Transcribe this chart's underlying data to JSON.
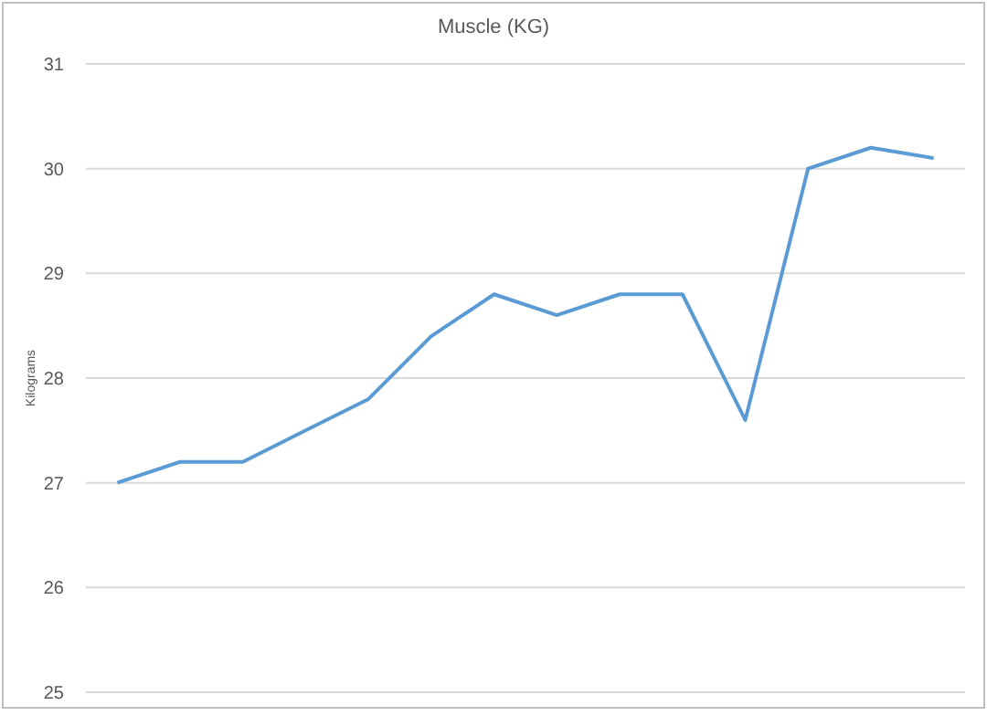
{
  "chart_data": {
    "type": "line",
    "title": "Muscle (KG)",
    "ylabel": "Kilograms",
    "categories": [
      null,
      null,
      null,
      null,
      null,
      null,
      null,
      null,
      null,
      null,
      null,
      null,
      null,
      null
    ],
    "series": [
      {
        "color": "#5b9bd5",
        "values": [
          27.0,
          27.2,
          27.2,
          27.5,
          27.8,
          28.4,
          28.8,
          28.6,
          28.8,
          28.8,
          27.6,
          30.0,
          30.2,
          30.1
        ]
      }
    ],
    "ylim": [
      25,
      31
    ],
    "yticks": [
      25,
      26,
      27,
      28,
      29,
      30,
      31
    ],
    "grid": "y",
    "marker": "none",
    "line_style": "solid"
  }
}
